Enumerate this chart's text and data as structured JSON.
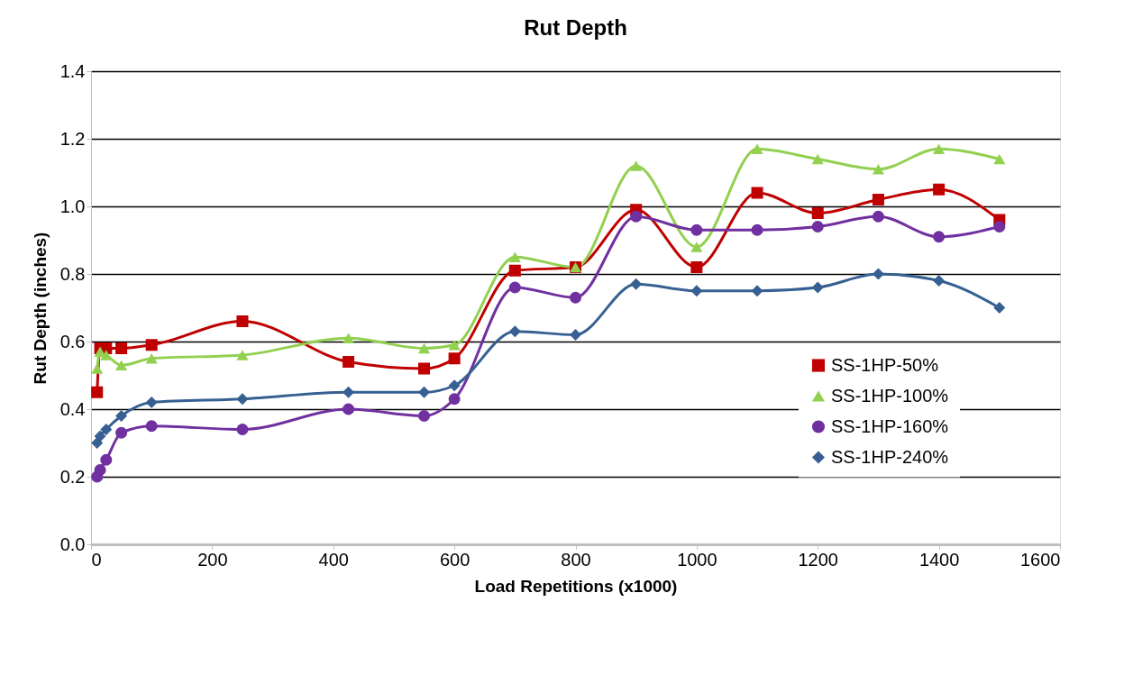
{
  "chart_data": {
    "type": "line",
    "title": "Rut Depth",
    "xlabel": "Load Repetitions (x1000)",
    "ylabel": "Rut Depth (inches)",
    "x": [
      10,
      15,
      25,
      50,
      100,
      250,
      425,
      550,
      600,
      700,
      800,
      900,
      1000,
      1100,
      1200,
      1300,
      1400,
      1500
    ],
    "series": [
      {
        "name": "SS-1HP-50%",
        "color": "#c00000",
        "marker": "square",
        "values": [
          0.45,
          0.58,
          0.58,
          0.58,
          0.59,
          0.66,
          0.54,
          0.52,
          0.55,
          0.81,
          0.82,
          0.99,
          0.82,
          1.04,
          0.98,
          1.02,
          1.05,
          0.96
        ]
      },
      {
        "name": "SS-1HP-100%",
        "color": "#92d050",
        "marker": "triangle",
        "values": [
          0.52,
          0.57,
          0.56,
          0.53,
          0.55,
          0.56,
          0.61,
          0.58,
          0.59,
          0.85,
          0.82,
          1.12,
          0.88,
          1.17,
          1.14,
          1.11,
          1.17,
          1.14
        ]
      },
      {
        "name": "SS-1HP-160%",
        "color": "#7030a0",
        "marker": "circle",
        "values": [
          0.2,
          0.22,
          0.25,
          0.33,
          0.35,
          0.34,
          0.4,
          0.38,
          0.43,
          0.76,
          0.73,
          0.97,
          0.93,
          0.93,
          0.94,
          0.97,
          0.91,
          0.94
        ]
      },
      {
        "name": "SS-1HP-240%",
        "color": "#376092",
        "marker": "diamond",
        "values": [
          0.3,
          0.32,
          0.34,
          0.38,
          0.42,
          0.43,
          0.45,
          0.45,
          0.47,
          0.63,
          0.62,
          0.77,
          0.75,
          0.75,
          0.76,
          0.8,
          0.78,
          0.7
        ]
      }
    ],
    "xlim": [
      0,
      1600
    ],
    "xticks": [
      0,
      200,
      400,
      600,
      800,
      1000,
      1200,
      1400,
      1600
    ],
    "ylim": [
      0,
      1.4
    ],
    "yticks": [
      {
        "value": 0,
        "label": "0.0"
      },
      {
        "value": 0.2,
        "label": "0.2"
      },
      {
        "value": 0.4,
        "label": "0.4"
      },
      {
        "value": 0.6,
        "label": "0.6"
      },
      {
        "value": 0.8,
        "label": "0.8"
      },
      {
        "value": 1.0,
        "label": "1.0"
      },
      {
        "value": 1.2,
        "label": "1.2"
      },
      {
        "value": 1.4,
        "label": "1.4"
      }
    ],
    "grid": "y",
    "legend": "right",
    "line_style": "solid"
  }
}
